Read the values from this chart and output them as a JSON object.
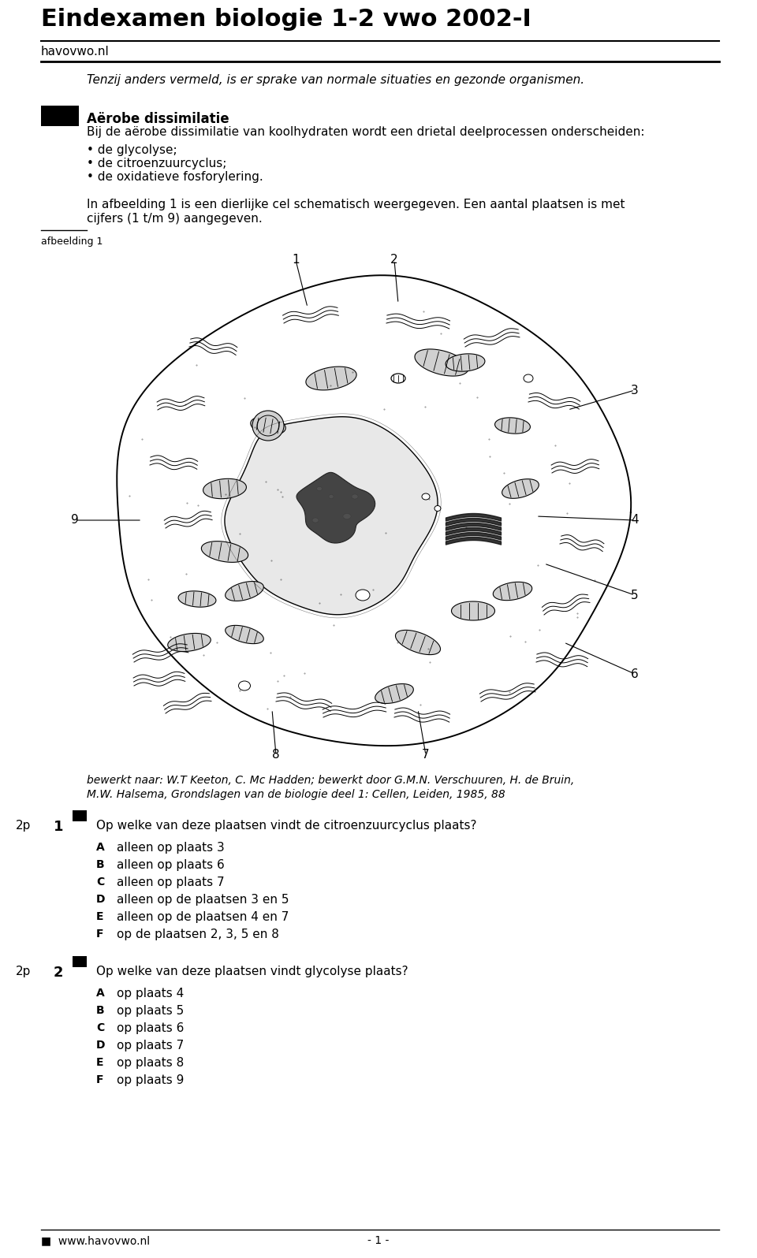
{
  "title": "Eindexamen biologie 1-2 vwo 2002-I",
  "subtitle_site": "havovwo.nl",
  "italic_line": "Tenzij anders vermeld, is er sprake van normale situaties en gezonde organismen.",
  "section_title": "Aërobe dissimilatie",
  "section_body": "Bij de aërobe dissimilatie van koolhydraten wordt een drietal deelprocessen onderscheiden:",
  "bullets": [
    "• de glycolyse;",
    "• de citroenzuurcyclus;",
    "• de oxidatieve fosforylering."
  ],
  "para2_line1": "In afbeelding 1 is een dierlijke cel schematisch weergegeven. Een aantal plaatsen is met",
  "para2_line2": "cijfers (1 t/m 9) aangegeven.",
  "afbeelding_label": "afbeelding 1",
  "caption_line1": "bewerkt naar: W.T Keeton, C. Mc Hadden; bewerkt door G.M.N. Verschuuren, H. de Bruin,",
  "caption_line2": "M.W. Halsema, Grondslagen van de biologie deel 1: Cellen, Leiden, 1985, 88",
  "q1_prefix": "2p",
  "q1_num": "1",
  "q1_marker": "■",
  "q1_text": "Op welke van deze plaatsen vindt de citroenzuurcyclus plaats?",
  "q1_options": [
    [
      "A",
      "alleen op plaats 3"
    ],
    [
      "B",
      "alleen op plaats 6"
    ],
    [
      "C",
      "alleen op plaats 7"
    ],
    [
      "D",
      "alleen op de plaatsen 3 en 5"
    ],
    [
      "E",
      "alleen op de plaatsen 4 en 7"
    ],
    [
      "F",
      "op de plaatsen 2, 3, 5 en 8"
    ]
  ],
  "q2_prefix": "2p",
  "q2_num": "2",
  "q2_marker": "■",
  "q2_text": "Op welke van deze plaatsen vindt glycolyse plaats?",
  "q2_options": [
    [
      "A",
      "op plaats 4"
    ],
    [
      "B",
      "op plaats 5"
    ],
    [
      "C",
      "op plaats 6"
    ],
    [
      "D",
      "op plaats 7"
    ],
    [
      "E",
      "op plaats 8"
    ],
    [
      "F",
      "op plaats 9"
    ]
  ],
  "footer_left": "■  www.havovwo.nl",
  "footer_right": "- 1 -",
  "bg_color": "#ffffff",
  "text_color": "#000000"
}
